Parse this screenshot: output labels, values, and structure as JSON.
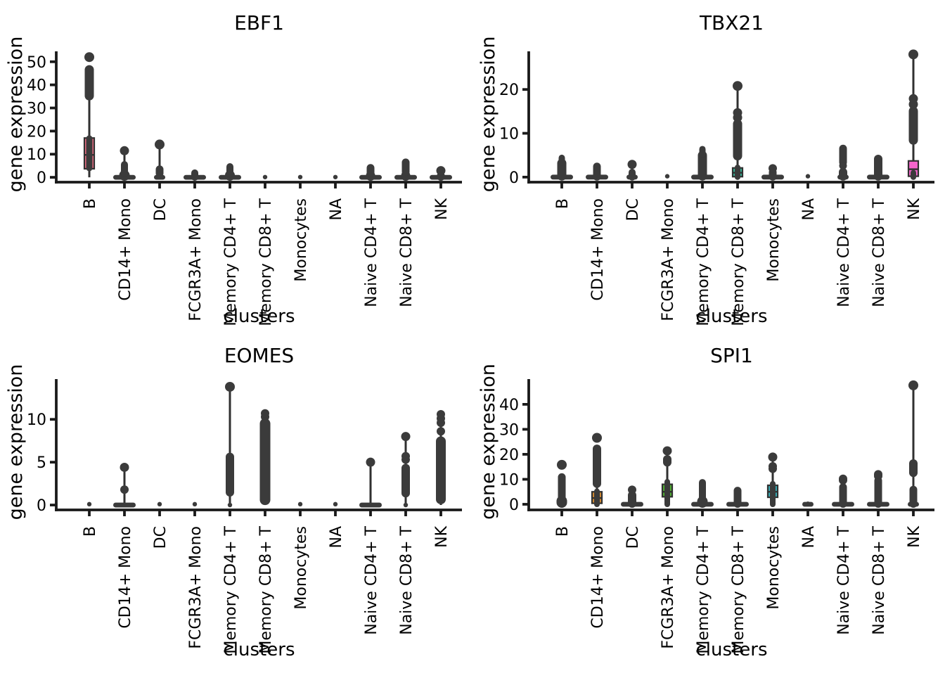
{
  "figure": {
    "background": "#ffffff",
    "point_color": "#3b3b3b",
    "axis_color": "#1a1a1a",
    "box_edge_color": "#303030",
    "xlabel": "clusters",
    "ylabel": "gene expression",
    "categories": [
      "B",
      "CD14+ Mono",
      "DC",
      "FCGR3A+ Mono",
      "Memory CD4+ T",
      "Memory CD8+ T",
      "Monocytes",
      "NA",
      "Naive CD4+ T",
      "Naive CD8+ T",
      "NK"
    ],
    "palette": {
      "B": "#f77189",
      "CD14+ Mono": "#d58c32",
      "DC": "#a4a031",
      "FCGR3A+ Mono": "#50b131",
      "Memory CD4+ T": "#34b171",
      "Memory CD8+ T": "#34ae91",
      "Monocytes": "#37abb4",
      "NA": "#3aa2f4",
      "Naive CD4+ T": "#a48cf4",
      "Naive CD8+ T": "#e866f4",
      "NK": "#f565cc"
    }
  },
  "chart_data": [
    {
      "type": "boxplot-strip",
      "title": "EBF1",
      "xlabel": "clusters",
      "ylabel": "gene expression",
      "yticks": [
        0,
        10,
        20,
        30,
        40,
        50
      ],
      "ylim": [
        -2.1,
        54.5
      ],
      "grid": false,
      "legend": "none",
      "categories": [
        "B",
        "CD14+ Mono",
        "DC",
        "FCGR3A+ Mono",
        "Memory CD4+ T",
        "Memory CD8+ T",
        "Monocytes",
        "NA",
        "Naive CD4+ T",
        "Naive CD8+ T",
        "NK"
      ],
      "series": [
        {
          "cluster": "B",
          "box": {
            "q1": 3.7,
            "median": 9.7,
            "q3": 17
          },
          "whisker": [
            0,
            34.5
          ],
          "dense": [
            [
              4,
              16.8,
              9
            ],
            [
              34.8,
              47,
              13
            ]
          ],
          "points": [
            [
              52,
              7
            ]
          ],
          "zeros": null
        },
        {
          "cluster": "CD14+ Mono",
          "whisker": [
            0,
            11.5
          ],
          "dense": [
            [
              0,
              1.6,
              15
            ],
            [
              1.6,
              5.5,
              10
            ]
          ],
          "points": [
            [
              11.5,
              6.5
            ]
          ],
          "zeros": "wide"
        },
        {
          "cluster": "DC",
          "whisker": [
            0,
            14.2
          ],
          "dense": [
            [
              1.6,
              3.6,
              11
            ]
          ],
          "points": [
            [
              14.2,
              7
            ],
            [
              0.2,
              4
            ]
          ],
          "zeros": "small"
        },
        {
          "cluster": "FCGR3A+ Mono",
          "dense": [
            [
              0,
              1.9,
              10
            ]
          ],
          "zeros": "wide"
        },
        {
          "cluster": "Memory CD4+ T",
          "dense": [
            [
              0,
              1.5,
              14
            ],
            [
              1.5,
              4.6,
              10
            ]
          ],
          "zeros": "wide"
        },
        {
          "cluster": "Memory CD8+ T",
          "points": [
            [
              0.1,
              3.2
            ]
          ]
        },
        {
          "cluster": "Monocytes",
          "points": [
            [
              0.1,
              3.2
            ]
          ]
        },
        {
          "cluster": "NA",
          "points": [
            [
              0.1,
              3.2
            ]
          ]
        },
        {
          "cluster": "Naive CD4+ T",
          "dense": [
            [
              0,
              1.2,
              13
            ],
            [
              1.8,
              4.2,
              11
            ]
          ],
          "zeros": "wide"
        },
        {
          "cluster": "Naive CD8+ T",
          "dense": [
            [
              0,
              1.2,
              13
            ],
            [
              2.2,
              6.6,
              11
            ]
          ],
          "zeros": "wide"
        },
        {
          "cluster": "NK",
          "whisker": [
            0,
            2.9
          ],
          "dense": [
            [
              0,
              0.9,
              11
            ]
          ],
          "points": [
            [
              2.9,
              6.5
            ]
          ],
          "zeros": "wide"
        }
      ]
    },
    {
      "type": "boxplot-strip",
      "title": "TBX21",
      "xlabel": "clusters",
      "ylabel": "gene expression",
      "yticks": [
        0,
        10,
        20
      ],
      "ylim": [
        -1.15,
        28.7
      ],
      "grid": false,
      "legend": "none",
      "categories": [
        "B",
        "CD14+ Mono",
        "DC",
        "FCGR3A+ Mono",
        "Memory CD4+ T",
        "Memory CD8+ T",
        "Monocytes",
        "NA",
        "Naive CD4+ T",
        "Naive CD8+ T",
        "NK"
      ],
      "series": [
        {
          "cluster": "B",
          "dense": [
            [
              0,
              3.4,
              13
            ],
            [
              3.4,
              4.4,
              9
            ]
          ],
          "zeros": "wide"
        },
        {
          "cluster": "CD14+ Mono",
          "dense": [
            [
              0,
              2.5,
              11
            ]
          ],
          "zeros": "wide"
        },
        {
          "cluster": "DC",
          "whisker": [
            0,
            2.9
          ],
          "dense": [
            [
              0,
              1.1,
              10
            ]
          ],
          "points": [
            [
              2.9,
              6.5
            ]
          ],
          "zeros": "small"
        },
        {
          "cluster": "FCGR3A+ Mono",
          "points": [
            [
              0.2,
              3.2
            ]
          ]
        },
        {
          "cluster": "Memory CD4+ T",
          "dense": [
            [
              0,
              5.2,
              13
            ],
            [
              5.2,
              6.4,
              9
            ]
          ],
          "zeros": "wide"
        },
        {
          "cluster": "Memory CD8+ T",
          "box": {
            "q1": 0.1,
            "median": 1,
            "q3": 2.1
          },
          "whisker": [
            0,
            20.8
          ],
          "dense": [
            [
              0,
              2.2,
              8
            ],
            [
              4.6,
              12.4,
              13
            ]
          ],
          "points": [
            [
              13.6,
              6.5
            ],
            [
              14.7,
              6.5
            ],
            [
              20.8,
              7
            ]
          ],
          "zeros": null
        },
        {
          "cluster": "Monocytes",
          "dense": [
            [
              0,
              1.2,
              11
            ]
          ],
          "points": [
            [
              2,
              6
            ]
          ],
          "zeros": "wide"
        },
        {
          "cluster": "NA",
          "points": [
            [
              0.2,
              3.2
            ]
          ]
        },
        {
          "cluster": "Naive CD4+ T",
          "whisker": [
            0,
            6.6
          ],
          "dense": [
            [
              0,
              1.3,
              12
            ],
            [
              3.3,
              6.6,
              11
            ]
          ],
          "points": [
            [
              2.6,
              5.5
            ]
          ],
          "zeros": "small"
        },
        {
          "cluster": "Naive CD8+ T",
          "dense": [
            [
              0,
              4.3,
              12
            ]
          ],
          "zeros": "wide"
        },
        {
          "cluster": "NK",
          "box": {
            "q1": 0.2,
            "median": 1.8,
            "q3": 3.7
          },
          "whisker": [
            0,
            28
          ],
          "dense": [
            [
              0,
              1,
              8
            ],
            [
              8.2,
              15.3,
              13
            ]
          ],
          "points": [
            [
              16.6,
              6.5
            ],
            [
              17.9,
              6.5
            ],
            [
              28,
              7
            ]
          ],
          "zeros": null
        }
      ]
    },
    {
      "type": "boxplot-strip",
      "title": "EOMES",
      "xlabel": "clusters",
      "ylabel": "gene expression",
      "yticks": [
        0,
        5,
        10
      ],
      "ylim": [
        -0.57,
        14.7
      ],
      "grid": false,
      "legend": "none",
      "categories": [
        "B",
        "CD14+ Mono",
        "DC",
        "FCGR3A+ Mono",
        "Memory CD4+ T",
        "Memory CD8+ T",
        "Monocytes",
        "NA",
        "Naive CD4+ T",
        "Naive CD8+ T",
        "NK"
      ],
      "series": [
        {
          "cluster": "B",
          "points": [
            [
              0.1,
              3.2
            ]
          ]
        },
        {
          "cluster": "CD14+ Mono",
          "whisker": [
            0,
            4.4
          ],
          "points": [
            [
              1.8,
              6
            ],
            [
              4.4,
              6.5
            ]
          ],
          "zeros": "wide"
        },
        {
          "cluster": "DC",
          "points": [
            [
              0.1,
              3.2
            ]
          ]
        },
        {
          "cluster": "FCGR3A+ Mono",
          "points": [
            [
              0.1,
              3.2
            ]
          ]
        },
        {
          "cluster": "Memory CD4+ T",
          "whisker": [
            0,
            13.8
          ],
          "dense": [
            [
              1.4,
              5.7,
              12
            ]
          ],
          "points": [
            [
              13.8,
              7
            ],
            [
              0,
              3.2
            ]
          ],
          "zeros": null
        },
        {
          "cluster": "Memory CD8+ T",
          "whisker": [
            0,
            10.9
          ],
          "dense": [
            [
              0.4,
              9.7,
              15
            ]
          ],
          "points": [
            [
              10.3,
              6
            ],
            [
              10.7,
              6
            ]
          ],
          "zeros": null
        },
        {
          "cluster": "Monocytes",
          "points": [
            [
              0.1,
              3.2
            ]
          ]
        },
        {
          "cluster": "NA",
          "points": [
            [
              0.1,
              3.2
            ]
          ]
        },
        {
          "cluster": "Naive CD4+ T",
          "whisker": [
            0,
            5
          ],
          "points": [
            [
              5,
              6.5
            ]
          ],
          "zeros": "wide"
        },
        {
          "cluster": "Naive CD8+ T",
          "whisker": [
            0,
            8
          ],
          "dense": [
            [
              1.3,
              4.4,
              12
            ]
          ],
          "points": [
            [
              5.3,
              6
            ],
            [
              5.7,
              6
            ],
            [
              8,
              6.5
            ],
            [
              0,
              3.2
            ]
          ],
          "zeros": null
        },
        {
          "cluster": "NK",
          "whisker": [
            0,
            10.7
          ],
          "dense": [
            [
              0.5,
              7.6,
              14
            ]
          ],
          "points": [
            [
              8.6,
              6
            ],
            [
              9.6,
              6
            ],
            [
              10.1,
              6
            ],
            [
              10.6,
              6
            ]
          ],
          "zeros": null
        }
      ]
    },
    {
      "type": "boxplot-strip",
      "title": "SPI1",
      "xlabel": "clusters",
      "ylabel": "gene expression",
      "yticks": [
        0,
        10,
        20,
        30,
        40
      ],
      "ylim": [
        -2.25,
        50.1
      ],
      "grid": false,
      "legend": "none",
      "categories": [
        "B",
        "CD14+ Mono",
        "DC",
        "FCGR3A+ Mono",
        "Memory CD4+ T",
        "Memory CD8+ T",
        "Monocytes",
        "NA",
        "Naive CD4+ T",
        "Naive CD8+ T",
        "NK"
      ],
      "series": [
        {
          "cluster": "B",
          "dense": [
            [
              0,
              2,
              15
            ],
            [
              0,
              11,
              11
            ]
          ],
          "points": [
            [
              15.8,
              7
            ]
          ],
          "zeros": null
        },
        {
          "cluster": "CD14+ Mono",
          "box": {
            "q1": 0.4,
            "median": 2.5,
            "q3": 5
          },
          "whisker": [
            0,
            22.5
          ],
          "dense": [
            [
              0,
              5.2,
              8
            ],
            [
              8,
              22.5,
              12
            ]
          ],
          "points": [
            [
              26.6,
              7
            ]
          ],
          "zeros": null
        },
        {
          "cluster": "DC",
          "dense": [
            [
              0,
              3.9,
              12
            ]
          ],
          "points": [
            [
              5.8,
              6
            ]
          ],
          "zeros": "wide"
        },
        {
          "cluster": "FCGR3A+ Mono",
          "box": {
            "q1": 3,
            "median": 5,
            "q3": 8
          },
          "whisker": [
            0,
            21.6
          ],
          "dense": [
            [
              0,
              9,
              8
            ],
            [
              16.5,
              18.3,
              12
            ]
          ],
          "points": [
            [
              21.4,
              6.5
            ]
          ],
          "zeros": null
        },
        {
          "cluster": "Memory CD4+ T",
          "dense": [
            [
              0,
              1.8,
              15
            ],
            [
              0,
              8.7,
              10
            ]
          ],
          "zeros": "wide"
        },
        {
          "cluster": "Memory CD8+ T",
          "dense": [
            [
              0,
              5.6,
              11
            ]
          ],
          "zeros": "wide"
        },
        {
          "cluster": "Monocytes",
          "box": {
            "q1": 2.8,
            "median": 5,
            "q3": 7.6
          },
          "whisker": [
            0,
            19
          ],
          "dense": [
            [
              0,
              8.2,
              8
            ]
          ],
          "points": [
            [
              14.2,
              6
            ],
            [
              15.2,
              6
            ],
            [
              18.9,
              6.5
            ]
          ],
          "zeros": null
        },
        {
          "cluster": "NA",
          "points": [
            [
              0.3,
              3
            ]
          ],
          "zeros": "small"
        },
        {
          "cluster": "Naive CD4+ T",
          "dense": [
            [
              0,
              7,
              11
            ]
          ],
          "points": [
            [
              9.6,
              6
            ],
            [
              10.2,
              6
            ]
          ],
          "zeros": "wide"
        },
        {
          "cluster": "Naive CD8+ T",
          "dense": [
            [
              0,
              9.6,
              11
            ]
          ],
          "points": [
            [
              11.3,
              6
            ],
            [
              12,
              6
            ]
          ],
          "zeros": "wide"
        },
        {
          "cluster": "NK",
          "whisker": [
            0,
            47.6
          ],
          "dense": [
            [
              0,
              6,
              11
            ],
            [
              12.3,
              16.6,
              12
            ]
          ],
          "points": [
            [
              47.6,
              7
            ],
            [
              13,
              6
            ]
          ],
          "zeros": "small"
        }
      ]
    }
  ]
}
